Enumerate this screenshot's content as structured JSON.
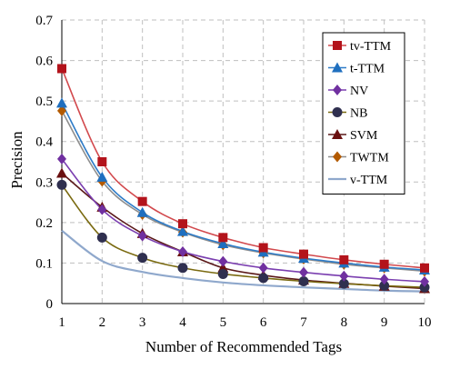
{
  "chart_data": {
    "type": "line",
    "title": "",
    "xlabel": "Number of Recommended Tags",
    "ylabel": "Precision",
    "x": [
      1,
      2,
      3,
      4,
      5,
      6,
      7,
      8,
      9,
      10
    ],
    "xlim": [
      1,
      10
    ],
    "ylim": [
      0,
      0.7
    ],
    "xticks": [
      "1",
      "2",
      "3",
      "4",
      "5",
      "6",
      "7",
      "8",
      "9",
      "10"
    ],
    "yticks": [
      "0",
      "0.1",
      "0.2",
      "0.3",
      "0.4",
      "0.5",
      "0.6",
      "0.7"
    ],
    "grid": "dashed",
    "legend_position": "top-right",
    "series": [
      {
        "name": "tv-TTM",
        "color": "#b3131b",
        "line_color": "#d2494d",
        "marker": "square",
        "values": [
          0.58,
          0.35,
          0.252,
          0.197,
          0.163,
          0.138,
          0.122,
          0.108,
          0.097,
          0.088
        ]
      },
      {
        "name": "t-TTM",
        "color": "#1f6fbf",
        "line_color": "#2e7cc8",
        "marker": "triangle",
        "values": [
          0.495,
          0.312,
          0.225,
          0.178,
          0.148,
          0.127,
          0.112,
          0.1,
          0.09,
          0.083
        ]
      },
      {
        "name": "NV",
        "color": "#7030a0",
        "line_color": "#7b3fb0",
        "marker": "diamond",
        "values": [
          0.357,
          0.232,
          0.167,
          0.128,
          0.104,
          0.088,
          0.077,
          0.068,
          0.06,
          0.054
        ]
      },
      {
        "name": "NB",
        "color": "#2f2f4f",
        "line_color": "#7a6a10",
        "marker": "circle",
        "values": [
          0.293,
          0.163,
          0.113,
          0.088,
          0.073,
          0.063,
          0.055,
          0.049,
          0.044,
          0.04
        ]
      },
      {
        "name": "SVM",
        "color": "#6a1010",
        "line_color": "#5a1818",
        "marker": "triangle",
        "values": [
          0.322,
          0.238,
          0.173,
          0.128,
          0.088,
          0.07,
          0.058,
          0.05,
          0.043,
          0.037
        ]
      },
      {
        "name": "TWTM",
        "color": "#b35a00",
        "line_color": "#8e8e8e",
        "marker": "diamond",
        "values": [
          0.476,
          0.302,
          0.22,
          0.176,
          0.145,
          0.125,
          0.11,
          0.097,
          0.088,
          0.08
        ]
      },
      {
        "name": "v-TTM",
        "color": "#8fa8cc",
        "line_color": "#8fa8cc",
        "marker": "plus",
        "values": [
          0.18,
          0.105,
          0.078,
          0.063,
          0.052,
          0.045,
          0.04,
          0.036,
          0.032,
          0.03
        ]
      }
    ]
  }
}
